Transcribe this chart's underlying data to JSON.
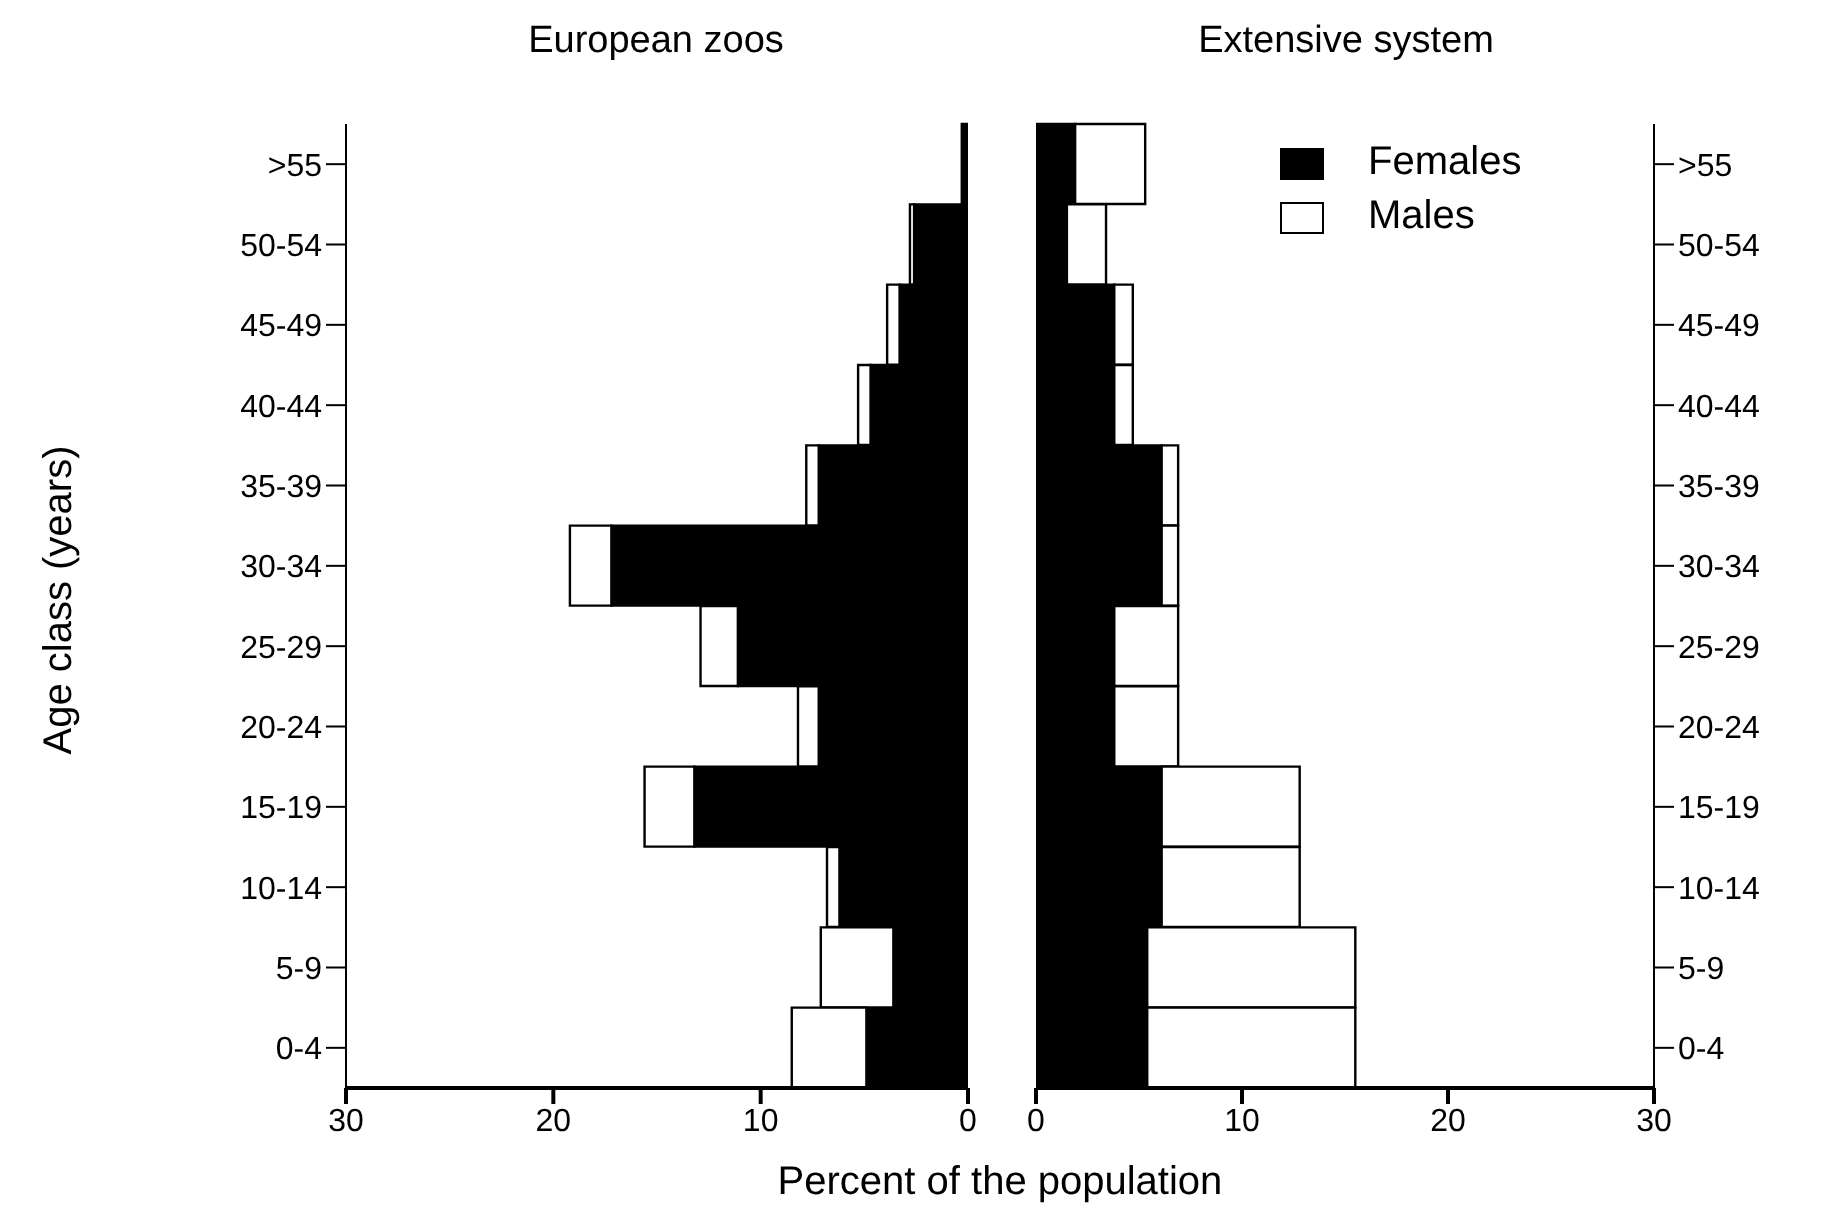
{
  "chart_data": [
    {
      "type": "bar",
      "orientation": "horizontal",
      "stacked": true,
      "title": "European zoos",
      "xlabel": "Percent of the population",
      "ylabel": "Age class (years)",
      "categories": [
        ">55",
        "50-54",
        "45-49",
        "40-44",
        "35-39",
        "30-34",
        "25-29",
        "20-24",
        "15-19",
        "10-14",
        "5-9",
        "0-4"
      ],
      "xlim": [
        30,
        0
      ],
      "xticks": [
        30,
        20,
        10,
        0
      ],
      "legend": false,
      "series": [
        {
          "color": "#000000",
          "values": [
            0.3,
            2.6,
            3.3,
            4.7,
            7.2,
            17.2,
            11.1,
            7.2,
            13.2,
            6.2,
            3.6,
            4.9
          ]
        },
        {
          "color": "#ffffff",
          "values": [
            0,
            0.2,
            0.6,
            0.6,
            0.6,
            2.0,
            1.8,
            1.0,
            2.4,
            0.6,
            3.5,
            3.6
          ]
        }
      ]
    },
    {
      "type": "bar",
      "orientation": "horizontal",
      "stacked": true,
      "title": "Extensive system",
      "categories": [
        ">55",
        "50-54",
        "45-49",
        "40-44",
        "35-39",
        "30-34",
        "25-29",
        "20-24",
        "15-19",
        "10-14",
        "5-9",
        "0-4"
      ],
      "xlim": [
        0,
        30
      ],
      "xticks": [
        0,
        10,
        20,
        30
      ],
      "legend": "top right",
      "series": [
        {
          "name": "Females",
          "color": "#000000",
          "values": [
            1.9,
            1.5,
            3.8,
            3.8,
            6.1,
            6.1,
            3.8,
            3.8,
            6.1,
            6.1,
            5.4,
            5.4
          ]
        },
        {
          "name": "Males",
          "color": "#ffffff",
          "values": [
            3.4,
            1.9,
            0.9,
            0.9,
            0.8,
            0.8,
            3.1,
            3.1,
            6.7,
            6.7,
            10.1,
            10.1
          ]
        }
      ]
    }
  ]
}
